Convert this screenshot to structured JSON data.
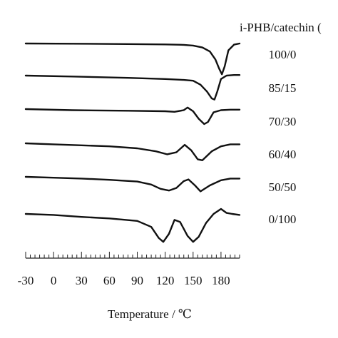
{
  "chart_data": {
    "type": "line",
    "title": "",
    "xlabel": "Temperature / ℃",
    "ylabel": "",
    "legend_title": "i-PHB/catechin (",
    "xlim": [
      -30,
      200
    ],
    "x_ticks": [
      -30,
      0,
      30,
      60,
      90,
      120,
      150,
      180
    ],
    "x_tick_labels": [
      "-30",
      "0",
      "30",
      "60",
      "90",
      "120",
      "150",
      "180"
    ],
    "grid": false,
    "series": [
      {
        "name": "100/0",
        "x": [
          -30,
          20,
          80,
          120,
          140,
          150,
          160,
          168,
          174,
          178,
          181,
          184,
          188,
          194,
          200
        ],
        "y": [
          0.0,
          0.02,
          0.05,
          0.08,
          0.12,
          0.18,
          0.35,
          0.7,
          1.4,
          2.2,
          2.7,
          2.0,
          0.6,
          0.1,
          0.0
        ]
      },
      {
        "name": "85/15",
        "x": [
          -30,
          20,
          80,
          120,
          140,
          150,
          158,
          165,
          170,
          173,
          176,
          180,
          186,
          194,
          200
        ],
        "y": [
          0.0,
          0.08,
          0.2,
          0.3,
          0.38,
          0.45,
          0.8,
          1.4,
          2.0,
          2.1,
          1.4,
          0.3,
          0.0,
          -0.05,
          -0.05
        ]
      },
      {
        "name": "70/30",
        "x": [
          -30,
          20,
          80,
          120,
          130,
          140,
          144,
          150,
          156,
          162,
          166,
          172,
          180,
          190,
          200
        ],
        "y": [
          0.0,
          0.1,
          0.15,
          0.2,
          0.25,
          0.1,
          -0.15,
          0.2,
          0.9,
          1.4,
          1.2,
          0.3,
          0.1,
          0.05,
          0.05
        ]
      },
      {
        "name": "60/40",
        "x": [
          -30,
          0,
          30,
          60,
          90,
          110,
          122,
          132,
          141,
          148,
          155,
          160,
          170,
          180,
          190,
          200
        ],
        "y": [
          0.0,
          0.1,
          0.2,
          0.3,
          0.5,
          0.8,
          1.1,
          0.9,
          0.15,
          0.7,
          1.6,
          1.7,
          0.8,
          0.3,
          0.1,
          0.1
        ]
      },
      {
        "name": "50/50",
        "x": [
          -30,
          0,
          30,
          60,
          90,
          105,
          115,
          124,
          132,
          140,
          145,
          152,
          158,
          168,
          180,
          190,
          200
        ],
        "y": [
          0.0,
          0.1,
          0.2,
          0.35,
          0.55,
          0.9,
          1.4,
          1.6,
          1.3,
          0.5,
          0.3,
          1.0,
          1.7,
          1.0,
          0.4,
          0.2,
          0.2
        ]
      },
      {
        "name": "0/100",
        "x": [
          -30,
          0,
          30,
          60,
          90,
          105,
          113,
          118,
          124,
          130,
          136,
          144,
          150,
          156,
          164,
          172,
          180,
          186,
          192,
          200
        ],
        "y": [
          0.0,
          0.1,
          0.3,
          0.45,
          0.7,
          1.3,
          2.4,
          2.8,
          2.0,
          0.6,
          0.8,
          2.2,
          2.8,
          2.3,
          0.9,
          0.0,
          -0.5,
          -0.1,
          0.0,
          0.1
        ]
      }
    ]
  }
}
